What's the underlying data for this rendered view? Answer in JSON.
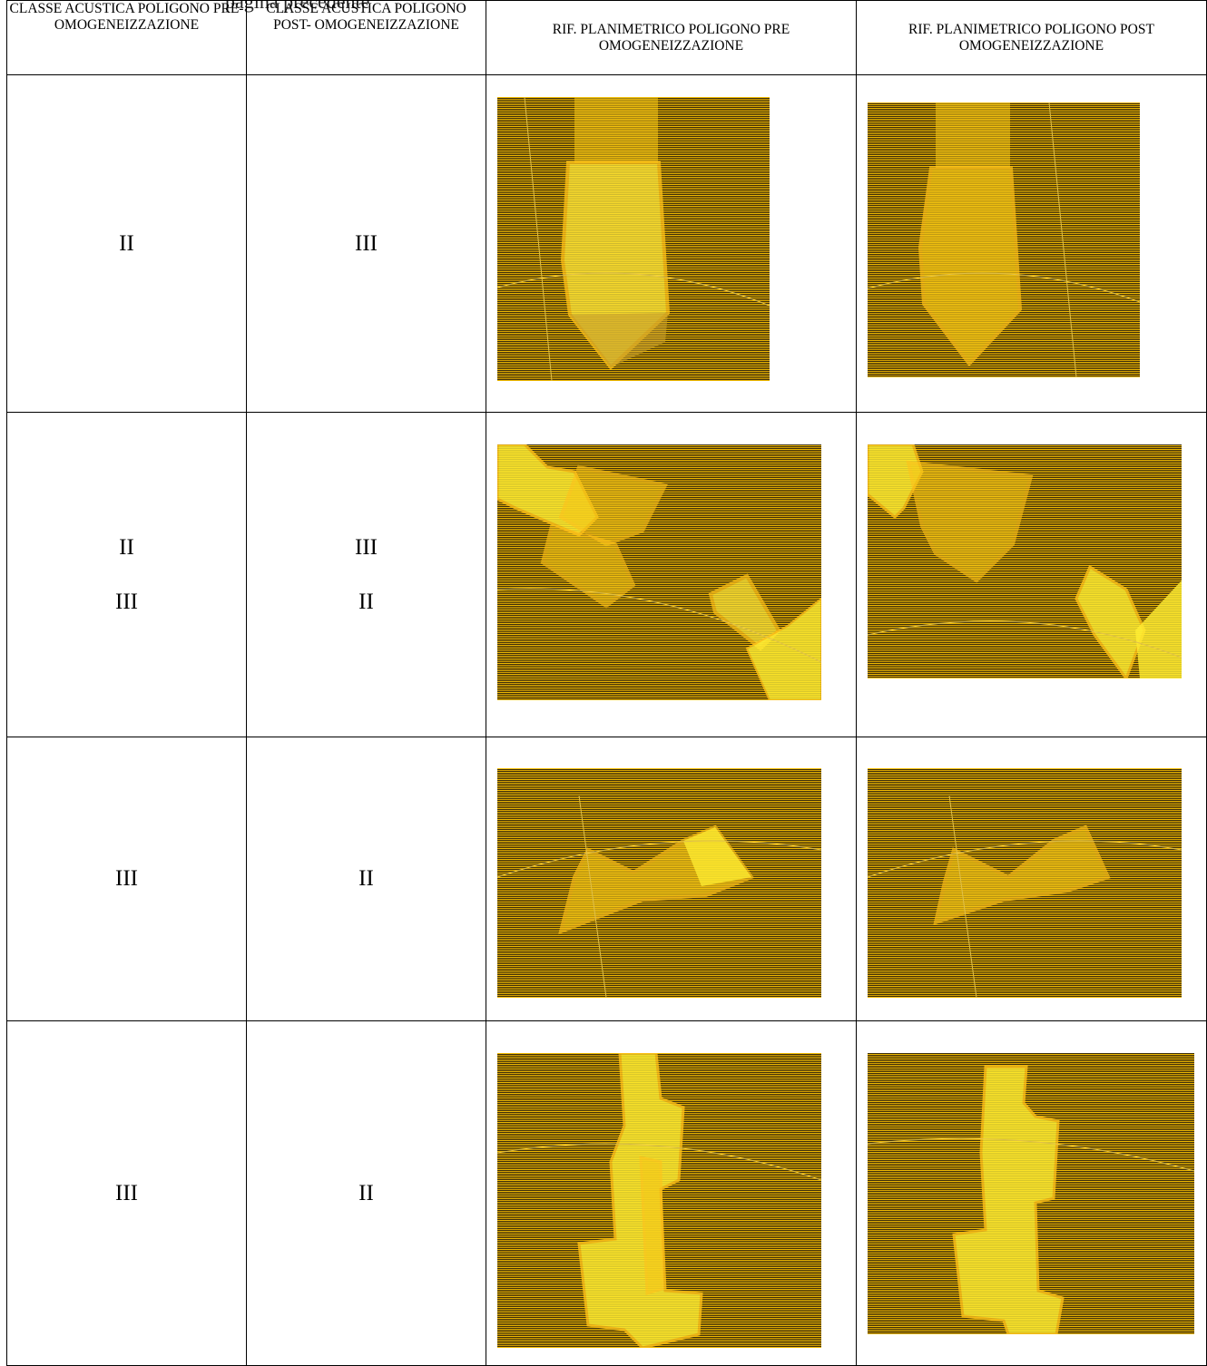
{
  "page": {
    "cutoff_text": "pagina precedente"
  },
  "table": {
    "headers": [
      "CLASSE ACUSTICA POLIGONO PRE- OMOGENEIZZAZIONE",
      "CLASSE ACUSTICA POLIGONO POST- OMOGENEIZZAZIONE",
      "RIF. PLANIMETRICO POLIGONO PRE OMOGENEIZZAZIONE",
      "RIF. PLANIMETRICO POLIGONO POST OMOGENEIZZAZIONE"
    ],
    "rows": [
      {
        "pre": [
          "II"
        ],
        "post": [
          "III"
        ],
        "map_pre": "map-1-pre",
        "map_post": "map-1-post"
      },
      {
        "pre": [
          "II",
          "III"
        ],
        "post": [
          "III",
          "II"
        ],
        "map_pre": "map-2-pre",
        "map_post": "map-2-post"
      },
      {
        "pre": [
          "III"
        ],
        "post": [
          "II"
        ],
        "map_pre": "map-3-pre",
        "map_post": "map-3-post"
      },
      {
        "pre": [
          "III"
        ],
        "post": [
          "II"
        ],
        "map_pre": "map-4-pre",
        "map_post": "map-4-post"
      }
    ]
  },
  "colors": {
    "hatch_yellow": "#f2bb00",
    "polygon_outline": "#ffc21a",
    "polygon_fill_bright": "#ffee33",
    "background_dark": "#3b2e0c"
  }
}
